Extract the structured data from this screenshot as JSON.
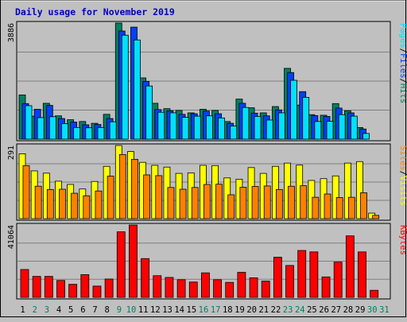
{
  "chart_data": {
    "type": "bar",
    "title": "Daily usage for November 2019",
    "categories": [
      "1",
      "2",
      "3",
      "4",
      "5",
      "6",
      "7",
      "8",
      "9",
      "10",
      "11",
      "12",
      "13",
      "14",
      "15",
      "16",
      "17",
      "18",
      "19",
      "20",
      "21",
      "22",
      "23",
      "24",
      "25",
      "26",
      "27",
      "28",
      "29",
      "30",
      "31"
    ],
    "weekend_days": [
      "2",
      "3",
      "9",
      "10",
      "16",
      "17",
      "23",
      "24",
      "30",
      "31"
    ],
    "panels": [
      {
        "id": "top",
        "max_label": "3886",
        "ymax": 3886,
        "legend": [
          {
            "text": "Pages",
            "color": "#00e0ff"
          },
          {
            "text": "/",
            "color": "#000000"
          },
          {
            "text": "Files",
            "color": "#0040ff"
          },
          {
            "text": "/",
            "color": "#000000"
          },
          {
            "text": "Hits",
            "color": "#008060"
          }
        ],
        "series": [
          {
            "name": "Hits",
            "color": "#008060",
            "values": [
              1480,
              770,
              1200,
              780,
              650,
              590,
              530,
              830,
              3886,
              0,
              2050,
              1200,
              1020,
              960,
              880,
              1000,
              960,
              590,
              1340,
              1050,
              880,
              1090,
              2370,
              1140,
              820,
              800,
              1190,
              950,
              390,
              0,
              0
            ]
          },
          {
            "name": "Files",
            "color": "#0040ff",
            "values": [
              1190,
              1000,
              1130,
              690,
              570,
              480,
              490,
              690,
              3620,
              3750,
              1930,
              990,
              950,
              830,
              850,
              940,
              850,
              530,
              1200,
              870,
              780,
              980,
              2230,
              1590,
              790,
              760,
              1040,
              880,
              340,
              0,
              0
            ]
          },
          {
            "name": "Pages",
            "color": "#00e0ff",
            "values": [
              1120,
              720,
              750,
              520,
              390,
              380,
              390,
              580,
              3480,
              3320,
              1780,
              900,
              880,
              730,
              770,
              780,
              710,
              440,
              1060,
              760,
              640,
              880,
              1970,
              1400,
              590,
              600,
              820,
              770,
              190,
              0,
              0
            ]
          }
        ]
      },
      {
        "id": "mid",
        "max_label": "291",
        "ymax": 291,
        "legend": [
          {
            "text": "Sites",
            "color": "#ff8000"
          },
          {
            "text": "/",
            "color": "#000000"
          },
          {
            "text": "Visits",
            "color": "#ffff00"
          }
        ],
        "series": [
          {
            "name": "Visits",
            "color": "#ffff00",
            "values": [
              258,
              190,
              181,
              149,
              136,
              118,
              148,
              208,
              291,
              267,
              224,
              212,
              205,
              180,
              182,
              212,
              211,
              162,
              157,
              203,
              180,
              208,
              221,
              213,
              152,
              159,
              170,
              221,
              227,
              22,
              0
            ]
          },
          {
            "name": "Sites",
            "color": "#ff8000",
            "values": [
              211,
              129,
              116,
              117,
              101,
              91,
              110,
              169,
              255,
              236,
              174,
              171,
              124,
              117,
              124,
              136,
              137,
              95,
              125,
              128,
              130,
              116,
              129,
              131,
              85,
              98,
              84,
              85,
              103,
              13,
              0
            ]
          }
        ]
      },
      {
        "id": "bot",
        "max_label": "41064",
        "ymax": 41064,
        "legend": [
          {
            "text": "KBytes",
            "color": "#ff0000"
          }
        ],
        "series": [
          {
            "name": "KBytes",
            "color": "#ff0000",
            "values": [
              15800,
              11900,
              11900,
              9600,
              7400,
              12900,
              6400,
              10400,
              37200,
              41064,
              22000,
              12300,
              11300,
              10000,
              8700,
              13900,
              10000,
              8500,
              14200,
              11100,
              9200,
              22800,
              18100,
              26600,
              25800,
              11600,
              20000,
              34900,
              25800,
              4000,
              0
            ]
          }
        ]
      }
    ]
  }
}
